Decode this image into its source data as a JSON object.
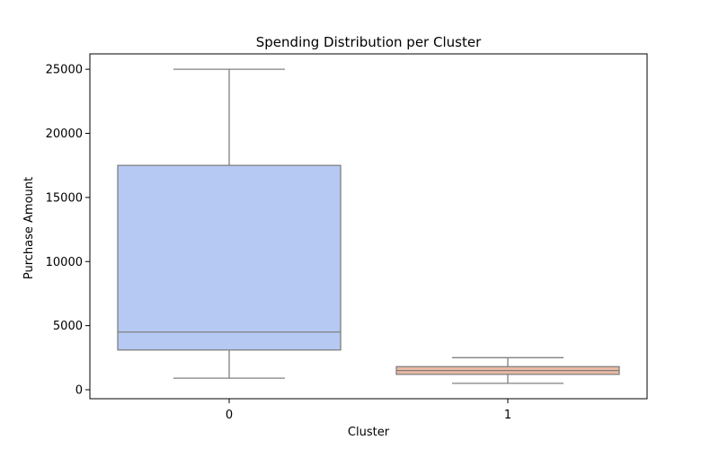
{
  "chart_data": {
    "type": "box",
    "title": "Spending Distribution per Cluster",
    "xlabel": "Cluster",
    "ylabel": "Purchase Amount",
    "ylim": [
      -700,
      26200
    ],
    "yticks": [
      0,
      5000,
      10000,
      15000,
      20000,
      25000
    ],
    "grid": false,
    "colors": {
      "box_edge": "#808080"
    },
    "categories": [
      "0",
      "1"
    ],
    "boxes": [
      {
        "category": "0",
        "whisker_low": 900,
        "q1": 3100,
        "median": 4500,
        "q3": 17500,
        "whisker_high": 25000,
        "color": "#b5c9f2"
      },
      {
        "category": "1",
        "whisker_low": 500,
        "q1": 1200,
        "median": 1500,
        "q3": 1800,
        "whisker_high": 2500,
        "color": "#ebb9a3"
      }
    ]
  }
}
